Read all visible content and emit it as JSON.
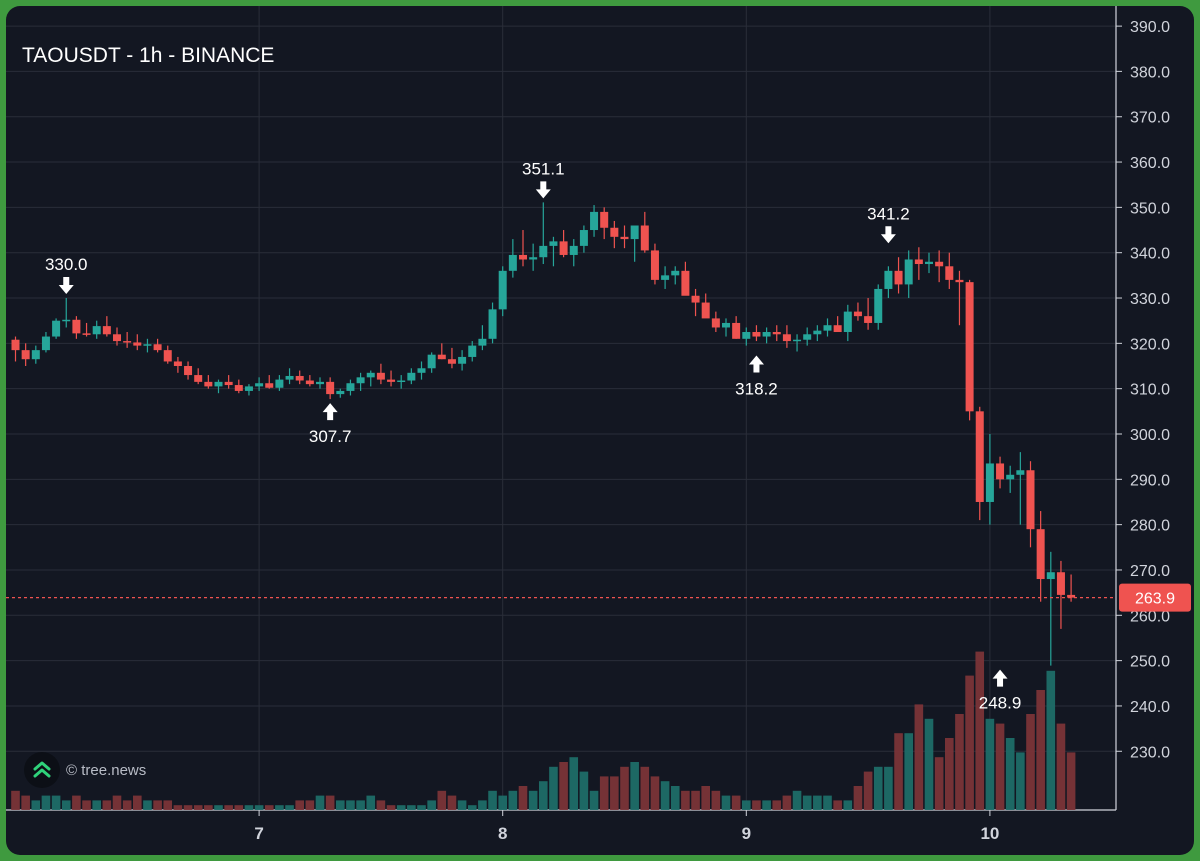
{
  "title": "TAOUSDT - 1h - BINANCE",
  "watermark": "© tree.news",
  "colors": {
    "up": "#26a69a",
    "down": "#ef5350",
    "background": "#131722",
    "grid": "#2a2e39",
    "text": "#d1d4dc"
  },
  "chart_data": {
    "type": "candlestick",
    "ylim": [
      223,
      392
    ],
    "y_ticks": [
      "230.0",
      "240.0",
      "250.0",
      "260.0",
      "270.0",
      "280.0",
      "290.0",
      "300.0",
      "310.0",
      "320.0",
      "330.0",
      "340.0",
      "350.0",
      "360.0",
      "370.0",
      "380.0",
      "390.0"
    ],
    "x_ticks": [
      {
        "label": "7",
        "index": 24
      },
      {
        "label": "8",
        "index": 48
      },
      {
        "label": "9",
        "index": 72
      },
      {
        "label": "10",
        "index": 96
      }
    ],
    "last_price": "263.9",
    "annotations": [
      {
        "label": "330.0",
        "index": 5,
        "price": 330.0,
        "type": "high"
      },
      {
        "label": "307.7",
        "index": 31,
        "price": 307.7,
        "type": "low"
      },
      {
        "label": "351.1",
        "index": 52,
        "price": 351.1,
        "type": "high"
      },
      {
        "label": "318.2",
        "index": 73,
        "price": 318.2,
        "type": "low"
      },
      {
        "label": "341.2",
        "index": 86,
        "price": 341.2,
        "type": "high"
      },
      {
        "label": "248.9",
        "index": 97,
        "price": 248.9,
        "type": "low"
      }
    ],
    "candles": [
      [
        320.8,
        321.5,
        316.0,
        318.5,
        4
      ],
      [
        318.5,
        320.0,
        315.0,
        316.5,
        3
      ],
      [
        316.5,
        319.5,
        315.5,
        318.5,
        2
      ],
      [
        318.5,
        322.5,
        318.0,
        321.5,
        3
      ],
      [
        321.5,
        325.5,
        321.0,
        325.0,
        3
      ],
      [
        325.0,
        330.0,
        323.5,
        325.2,
        2
      ],
      [
        325.2,
        326.0,
        321.0,
        322.2,
        3
      ],
      [
        322.2,
        324.5,
        321.5,
        322.0,
        2
      ],
      [
        322.0,
        325.0,
        321.0,
        323.8,
        2
      ],
      [
        323.8,
        326.0,
        321.5,
        322.0,
        2
      ],
      [
        322.0,
        323.5,
        319.5,
        320.5,
        3
      ],
      [
        320.5,
        322.5,
        319.0,
        320.2,
        2
      ],
      [
        320.2,
        322.0,
        318.5,
        319.5,
        3
      ],
      [
        319.5,
        321.0,
        318.0,
        319.8,
        2
      ],
      [
        319.8,
        321.0,
        318.0,
        318.5,
        2
      ],
      [
        318.5,
        319.5,
        315.5,
        316.0,
        2
      ],
      [
        316.0,
        317.0,
        313.5,
        315.0,
        1
      ],
      [
        315.0,
        316.0,
        312.0,
        313.0,
        1
      ],
      [
        313.0,
        314.5,
        311.0,
        311.5,
        1
      ],
      [
        311.5,
        313.0,
        310.0,
        310.5,
        1
      ],
      [
        310.5,
        312.0,
        309.0,
        311.5,
        1
      ],
      [
        311.5,
        313.0,
        310.0,
        310.8,
        1
      ],
      [
        310.8,
        312.0,
        309.0,
        309.5,
        1
      ],
      [
        309.5,
        311.0,
        308.5,
        310.5,
        1
      ],
      [
        310.5,
        312.5,
        309.5,
        311.2,
        1
      ],
      [
        311.2,
        313.0,
        310.0,
        310.2,
        1
      ],
      [
        310.2,
        313.0,
        309.5,
        312.0,
        1
      ],
      [
        312.0,
        314.5,
        311.0,
        312.8,
        1
      ],
      [
        312.8,
        314.0,
        311.0,
        311.8,
        2
      ],
      [
        311.8,
        313.0,
        310.5,
        311.0,
        2
      ],
      [
        311.0,
        312.5,
        310.0,
        311.5,
        3
      ],
      [
        311.5,
        312.5,
        307.7,
        308.8,
        3
      ],
      [
        308.8,
        310.0,
        308.0,
        309.5,
        2
      ],
      [
        309.5,
        312.0,
        308.5,
        311.2,
        2
      ],
      [
        311.2,
        313.5,
        309.5,
        312.5,
        2
      ],
      [
        312.5,
        314.0,
        310.5,
        313.5,
        3
      ],
      [
        313.5,
        315.5,
        311.0,
        312.0,
        2
      ],
      [
        312.0,
        314.0,
        310.5,
        311.5,
        1
      ],
      [
        311.5,
        313.0,
        310.0,
        311.8,
        1
      ],
      [
        311.8,
        314.5,
        311.0,
        313.5,
        1
      ],
      [
        313.5,
        316.0,
        312.0,
        314.5,
        1
      ],
      [
        314.5,
        318.0,
        313.5,
        317.5,
        2
      ],
      [
        317.5,
        320.0,
        316.5,
        316.5,
        4
      ],
      [
        316.5,
        319.0,
        314.5,
        315.5,
        3
      ],
      [
        315.5,
        318.5,
        314.0,
        317.0,
        2
      ],
      [
        317.0,
        320.5,
        316.0,
        319.5,
        1
      ],
      [
        319.5,
        324.0,
        318.5,
        321.0,
        2
      ],
      [
        321.0,
        329.0,
        320.0,
        327.5,
        4
      ],
      [
        327.5,
        337.0,
        326.0,
        336.0,
        3
      ],
      [
        336.0,
        343.0,
        334.5,
        339.5,
        4
      ],
      [
        339.5,
        345.0,
        337.0,
        338.5,
        5
      ],
      [
        338.5,
        342.0,
        336.0,
        339.0,
        4
      ],
      [
        339.0,
        351.1,
        337.5,
        341.5,
        6
      ],
      [
        341.5,
        343.5,
        337.0,
        342.5,
        9
      ],
      [
        342.5,
        345.0,
        339.0,
        339.5,
        10
      ],
      [
        339.5,
        343.0,
        337.0,
        341.5,
        11
      ],
      [
        341.5,
        346.0,
        340.0,
        345.0,
        8
      ],
      [
        345.0,
        350.5,
        343.5,
        349.0,
        4
      ],
      [
        349.0,
        350.0,
        343.0,
        345.5,
        7
      ],
      [
        345.5,
        347.0,
        341.0,
        343.5,
        7
      ],
      [
        343.5,
        346.0,
        341.0,
        343.0,
        9
      ],
      [
        343.0,
        346.0,
        338.0,
        346.0,
        10
      ],
      [
        346.0,
        349.0,
        340.0,
        340.5,
        9
      ],
      [
        340.5,
        342.0,
        333.0,
        334.0,
        7
      ],
      [
        334.0,
        337.0,
        332.0,
        335.0,
        6
      ],
      [
        335.0,
        337.0,
        333.0,
        336.0,
        5
      ],
      [
        336.0,
        338.0,
        332.0,
        330.5,
        4
      ],
      [
        330.5,
        332.0,
        326.0,
        329.0,
        4
      ],
      [
        329.0,
        331.0,
        326.0,
        325.5,
        5
      ],
      [
        325.5,
        327.0,
        322.5,
        323.5,
        4
      ],
      [
        323.5,
        325.5,
        321.5,
        324.5,
        3
      ],
      [
        324.5,
        326.0,
        321.0,
        321.0,
        3
      ],
      [
        321.0,
        323.5,
        319.5,
        322.5,
        2
      ],
      [
        322.5,
        324.0,
        320.5,
        321.5,
        2
      ],
      [
        321.5,
        323.5,
        320.0,
        322.5,
        2
      ],
      [
        322.5,
        324.0,
        320.5,
        322.0,
        2
      ],
      [
        322.0,
        324.0,
        319.0,
        320.5,
        3
      ],
      [
        320.5,
        322.0,
        318.2,
        320.8,
        4
      ],
      [
        320.8,
        323.5,
        319.5,
        322.0,
        3
      ],
      [
        322.0,
        324.0,
        320.5,
        322.8,
        3
      ],
      [
        322.8,
        325.5,
        321.5,
        324.0,
        3
      ],
      [
        324.0,
        326.0,
        322.5,
        322.5,
        2
      ],
      [
        322.5,
        328.5,
        320.5,
        327.0,
        2
      ],
      [
        327.0,
        329.0,
        325.0,
        326.0,
        5
      ],
      [
        326.0,
        330.0,
        323.0,
        324.5,
        8
      ],
      [
        324.5,
        333.0,
        323.0,
        332.0,
        9
      ],
      [
        332.0,
        337.0,
        330.0,
        336.0,
        9
      ],
      [
        336.0,
        339.0,
        331.0,
        333.0,
        16
      ],
      [
        333.0,
        340.5,
        330.0,
        338.5,
        16
      ],
      [
        338.5,
        341.2,
        334.0,
        337.5,
        22
      ],
      [
        337.5,
        340.0,
        335.5,
        338.0,
        19
      ],
      [
        338.0,
        340.5,
        333.5,
        337.0,
        11
      ],
      [
        337.0,
        340.0,
        332.0,
        334.0,
        15
      ],
      [
        334.0,
        336.0,
        324.0,
        333.5,
        20
      ],
      [
        333.5,
        334.0,
        303.0,
        305.0,
        28
      ],
      [
        305.0,
        306.0,
        281.0,
        285.0,
        33
      ],
      [
        285.0,
        300.0,
        280.0,
        293.5,
        19
      ],
      [
        293.5,
        295.0,
        288.0,
        290.0,
        18
      ],
      [
        290.0,
        293.0,
        287.0,
        291.0,
        15
      ],
      [
        291.0,
        296.0,
        280.0,
        292.0,
        12
      ],
      [
        292.0,
        294.0,
        275.0,
        279.0,
        20
      ],
      [
        279.0,
        283.0,
        263.0,
        268.0,
        25
      ],
      [
        268.0,
        274.0,
        248.9,
        269.5,
        29
      ],
      [
        269.5,
        272.0,
        257.0,
        264.5,
        18
      ],
      [
        264.5,
        269.0,
        263.0,
        263.9,
        12
      ]
    ]
  }
}
